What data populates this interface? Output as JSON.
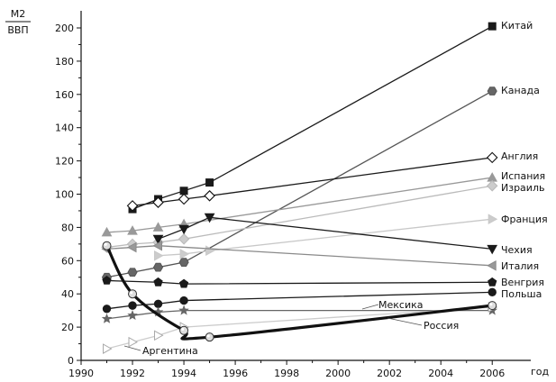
{
  "chart_data": {
    "type": "line",
    "title": "",
    "ylabel_top": "M2",
    "ylabel_bottom": "ВВП",
    "xlabel": "год",
    "xlim": [
      1990,
      2007
    ],
    "ylim": [
      0,
      210
    ],
    "xticks": [
      1990,
      1992,
      1994,
      1996,
      1998,
      2000,
      2002,
      2004,
      2006
    ],
    "yticks": [
      0,
      20,
      40,
      60,
      80,
      100,
      120,
      140,
      160,
      180,
      200
    ],
    "grid": false,
    "series": [
      {
        "name": "Китай",
        "color": "#1a1a1a",
        "marker": "square",
        "marker_fill": "#1a1a1a",
        "width": 1.3,
        "x": [
          1992,
          1993,
          1994,
          1995,
          2006
        ],
        "y": [
          91,
          97,
          102,
          107,
          201
        ]
      },
      {
        "name": "Канада",
        "color": "#555555",
        "marker": "hexagon",
        "marker_fill": "#666666",
        "width": 1.3,
        "x": [
          1991,
          1992,
          1993,
          1994,
          2006
        ],
        "y": [
          50,
          53,
          56,
          59,
          162
        ]
      },
      {
        "name": "Англия",
        "color": "#1a1a1a",
        "marker": "diamond-open",
        "marker_fill": "#ffffff",
        "width": 1.3,
        "x": [
          1992,
          1993,
          1994,
          1995,
          2006
        ],
        "y": [
          93,
          95,
          97,
          99,
          122
        ]
      },
      {
        "name": "Испания",
        "color": "#999999",
        "marker": "triangle-up",
        "marker_fill": "#999999",
        "width": 1.3,
        "x": [
          1991,
          1992,
          1993,
          1994,
          2006
        ],
        "y": [
          77,
          78,
          80,
          82,
          110
        ]
      },
      {
        "name": "Израиль",
        "color": "#bbbbbb",
        "marker": "diamond",
        "marker_fill": "#cccccc",
        "width": 1.3,
        "x": [
          1991,
          1992,
          1993,
          1994,
          2006
        ],
        "y": [
          68,
          70,
          71,
          73,
          105
        ]
      },
      {
        "name": "Франция",
        "color": "#c8c8c8",
        "marker": "triangle-right",
        "marker_fill": "#cccccc",
        "width": 1.3,
        "x": [
          1993,
          1994,
          1995,
          2006
        ],
        "y": [
          63,
          64,
          66,
          85
        ]
      },
      {
        "name": "Чехия",
        "color": "#1a1a1a",
        "marker": "triangle-down",
        "marker_fill": "#1a1a1a",
        "width": 1.3,
        "x": [
          1993,
          1994,
          1995,
          2006
        ],
        "y": [
          73,
          79,
          86,
          67
        ]
      },
      {
        "name": "Италия",
        "color": "#8a8a8a",
        "marker": "triangle-left",
        "marker_fill": "#999999",
        "width": 1.3,
        "x": [
          1991,
          1992,
          1993,
          2006
        ],
        "y": [
          67,
          68,
          69,
          57
        ]
      },
      {
        "name": "Венгрия",
        "color": "#1a1a1a",
        "marker": "pentagon",
        "marker_fill": "#1a1a1a",
        "width": 1.3,
        "x": [
          1991,
          1993,
          1994,
          2006
        ],
        "y": [
          48,
          47,
          46,
          47
        ]
      },
      {
        "name": "Польша",
        "color": "#1a1a1a",
        "marker": "circle",
        "marker_fill": "#1a1a1a",
        "width": 1.3,
        "x": [
          1991,
          1992,
          1993,
          1994,
          2006
        ],
        "y": [
          31,
          33,
          34,
          36,
          41
        ]
      },
      {
        "name": "Мексика",
        "color": "#666666",
        "marker": "star",
        "marker_fill": "#666666",
        "width": 1.3,
        "x": [
          1991,
          1992,
          1993,
          1994,
          2006
        ],
        "y": [
          25,
          27,
          29,
          30,
          30
        ]
      },
      {
        "name": "Россия",
        "color": "#111111",
        "marker": "sphere",
        "marker_fill": "#dddddd",
        "width": 3.2,
        "smooth": true,
        "x": [
          1991,
          1992,
          1994,
          1995,
          2006
        ],
        "y": [
          69,
          40,
          18,
          14,
          33
        ]
      },
      {
        "name": "Аргентина",
        "color": "#cccccc",
        "marker": "triangle-right-open",
        "marker_fill": "#ffffff",
        "width": 1.3,
        "x": [
          1991,
          1992,
          1993,
          1994,
          2006
        ],
        "y": [
          7,
          11,
          15,
          20,
          32
        ]
      }
    ]
  }
}
